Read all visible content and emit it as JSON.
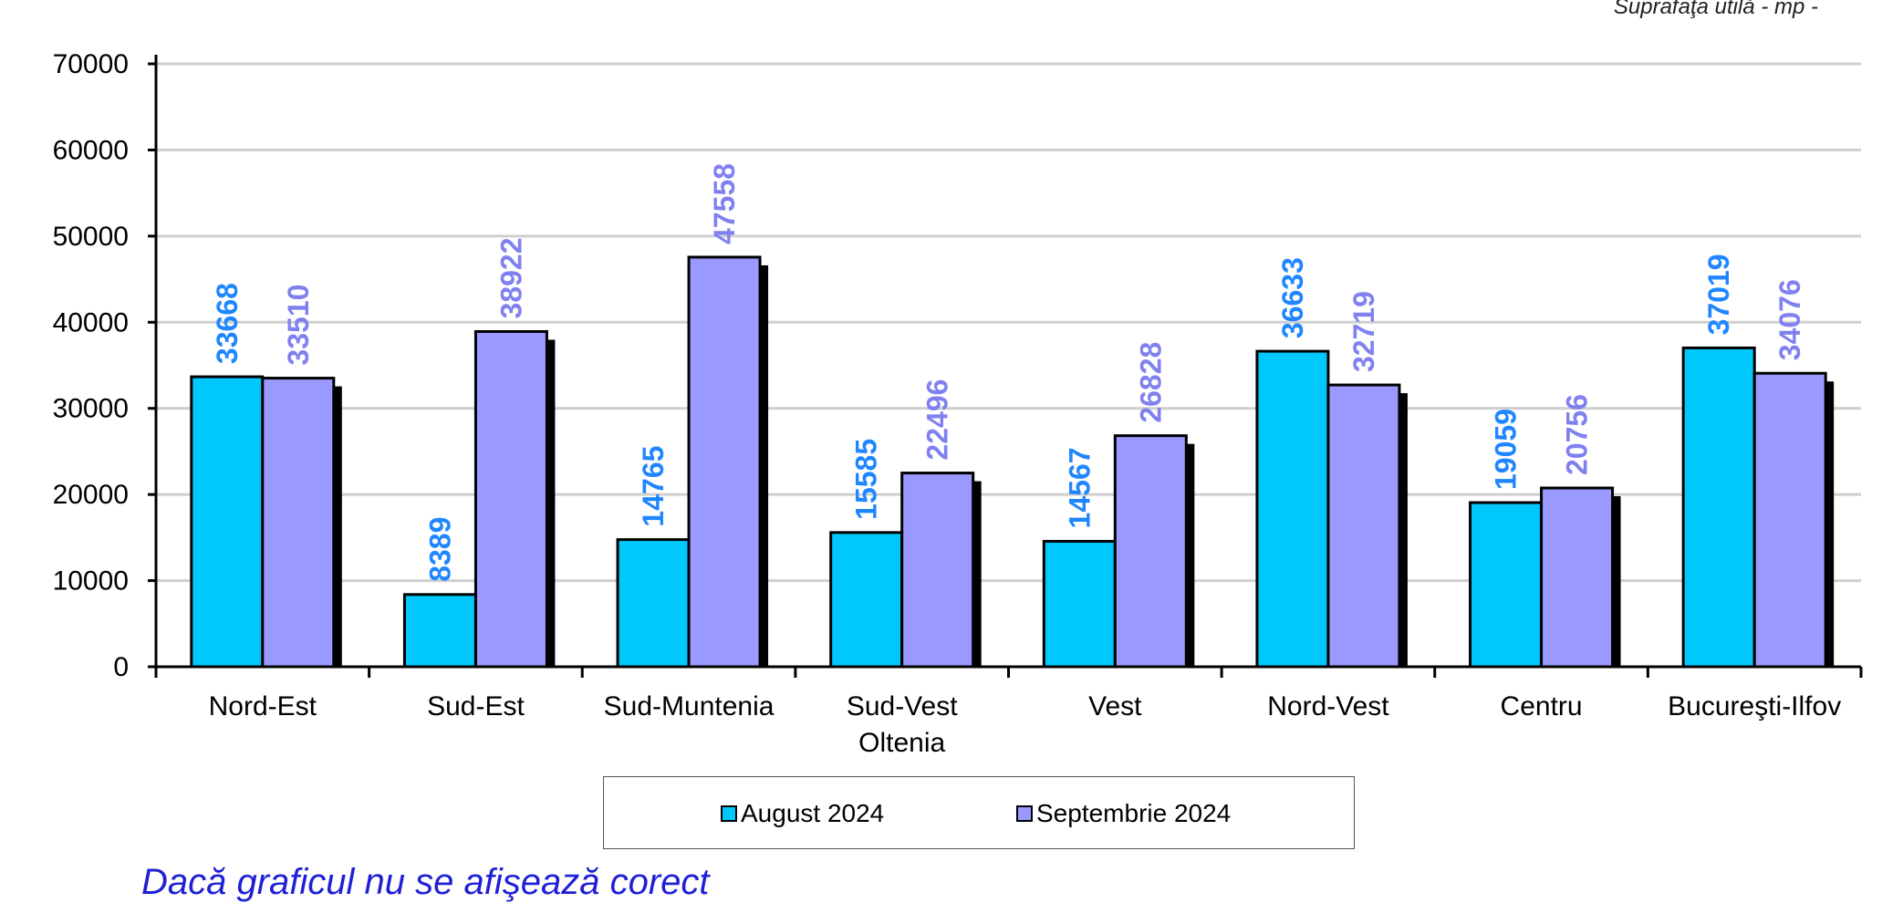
{
  "header_note": "Suprafaţa utilă - mp -",
  "footer_note": "Dacă graficul nu se afişează corect",
  "colors": {
    "series1": "#00c8fc",
    "series2": "#9999ff",
    "label1": "#1f86ff",
    "label2": "#8080f0",
    "grid": "#cfcfcf"
  },
  "chart_data": {
    "type": "bar",
    "categories": [
      "Nord-Est",
      "Sud-Est",
      "Sud-Muntenia",
      "Sud-Vest\nOltenia",
      "Vest",
      "Nord-Vest",
      "Centru",
      "Bucureşti-Ilfov"
    ],
    "series": [
      {
        "name": "August 2024",
        "values": [
          33668,
          8389,
          14765,
          15585,
          14567,
          36633,
          19059,
          37019
        ]
      },
      {
        "name": "Septembrie 2024",
        "values": [
          33510,
          38922,
          47558,
          22496,
          26828,
          32719,
          20756,
          34076
        ]
      }
    ],
    "yticks": [
      "0",
      "10000",
      "20000",
      "30000",
      "40000",
      "50000",
      "60000",
      "70000"
    ],
    "ylim": [
      0,
      70000
    ],
    "grid": true,
    "legend_position": "bottom"
  }
}
